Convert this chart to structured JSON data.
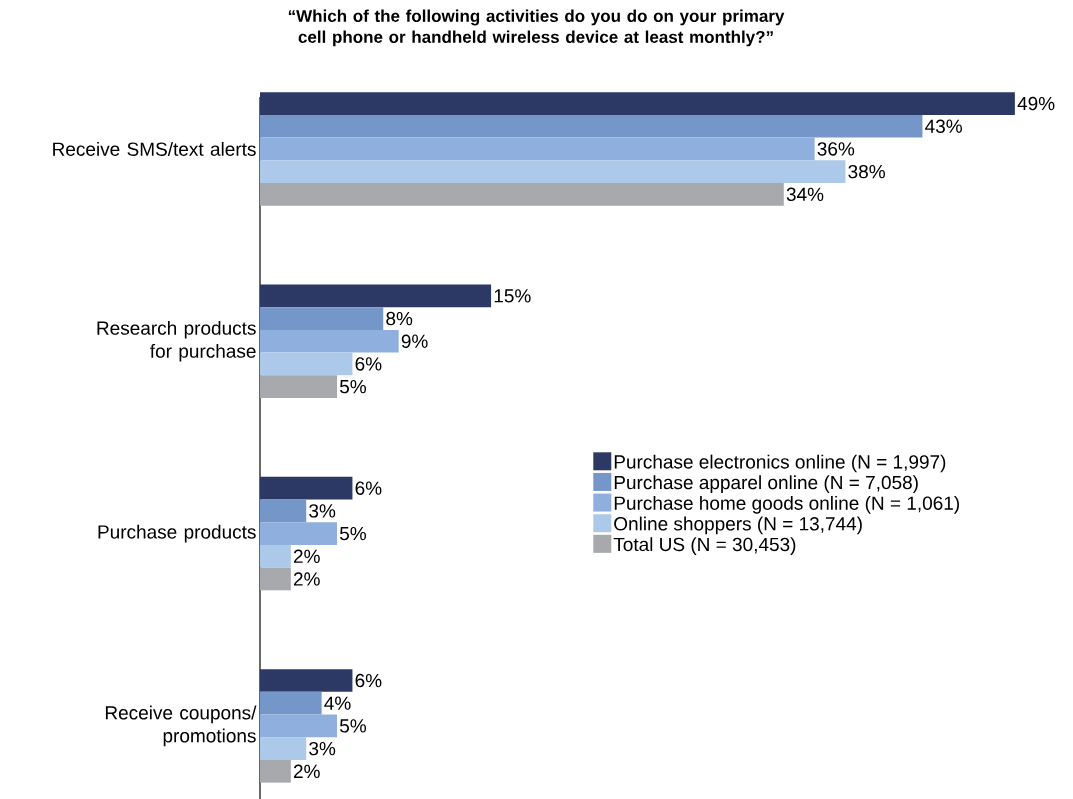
{
  "chart_data": {
    "type": "bar",
    "orientation": "horizontal",
    "title": "“Which of the following activities do you do on your primary cell phone or handheld wireless device at least monthly?”",
    "categories": [
      "Receive SMS/text alerts",
      "Research products for purchase",
      "Purchase products",
      "Receive coupons/ promotions"
    ],
    "series": [
      {
        "name": "Purchase electronics online (N = 1,997)",
        "color": "#2b3964",
        "values": [
          49,
          15,
          6,
          6
        ],
        "value_labels": [
          "49%",
          "15%",
          "6%",
          "6%"
        ]
      },
      {
        "name": "Purchase apparel online (N = 7,058)",
        "color": "#7596c8",
        "values": [
          43,
          8,
          3,
          4
        ],
        "value_labels": [
          "43%",
          "8%",
          "3%",
          "4%"
        ]
      },
      {
        "name": "Purchase home goods online (N = 1,061)",
        "color": "#8fb0de",
        "values": [
          36,
          9,
          5,
          5
        ],
        "value_labels": [
          "36%",
          "9%",
          "5%",
          "5%"
        ]
      },
      {
        "name": "Online shoppers (N = 13,744)",
        "color": "#adc9ea",
        "values": [
          38,
          6,
          2,
          3
        ],
        "value_labels": [
          "38%",
          "6%",
          "2%",
          "3%"
        ]
      },
      {
        "name": "Total US (N = 30,453)",
        "color": "#a7a9ac",
        "values": [
          34,
          5,
          2,
          2
        ],
        "value_labels": [
          "34%",
          "5%",
          "2%",
          "2%"
        ]
      }
    ],
    "legend": "right"
  }
}
